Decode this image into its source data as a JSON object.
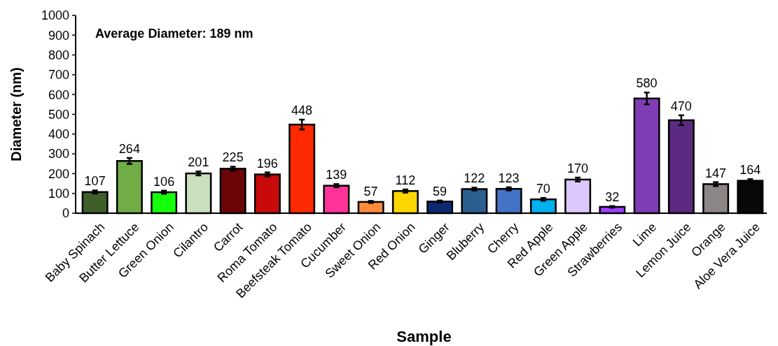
{
  "chart_data": {
    "type": "bar",
    "xlabel": "Sample",
    "ylabel": "Diameter (nm)",
    "categories": [
      "Baby Spinach",
      "Butter Lettuce",
      "Green Onion",
      "Cilantro",
      "Carrot",
      "Roma Tomato",
      "Beefsteak Tomato",
      "Cucumber",
      "Sweet Onion",
      "Red Onion",
      "Ginger",
      "Bluberry",
      "Cherry",
      "Red Apple",
      "Green Apple",
      "Strawberries",
      "Lime",
      "Lemon Juice",
      "Orange",
      "Aloe Vera Juice"
    ],
    "values": [
      107,
      264,
      106,
      201,
      225,
      196,
      448,
      139,
      57,
      112,
      59,
      122,
      123,
      70,
      170,
      32,
      580,
      470,
      147,
      164
    ],
    "errors": [
      8,
      15,
      8,
      10,
      10,
      10,
      25,
      8,
      5,
      8,
      5,
      7,
      8,
      7,
      10,
      4,
      30,
      25,
      10,
      8
    ],
    "colors": [
      "#3f5f2a",
      "#70ad47",
      "#14ff0a",
      "#c9e0bf",
      "#6b0507",
      "#c80a0a",
      "#ff2a00",
      "#ff3399",
      "#ff8a3c",
      "#ffd700",
      "#0b2a73",
      "#2a5f8f",
      "#4472c4",
      "#00b0f0",
      "#dcc8ff",
      "#a040ff",
      "#803cb5",
      "#5c2a80",
      "#8c8585",
      "#080808"
    ],
    "ylim": [
      0,
      1000
    ],
    "yticks": [
      0,
      100,
      200,
      300,
      400,
      500,
      600,
      700,
      800,
      900,
      1000
    ],
    "data_labels": true,
    "grid": false,
    "annotations": [
      "Average Diameter: 189 nm"
    ]
  }
}
